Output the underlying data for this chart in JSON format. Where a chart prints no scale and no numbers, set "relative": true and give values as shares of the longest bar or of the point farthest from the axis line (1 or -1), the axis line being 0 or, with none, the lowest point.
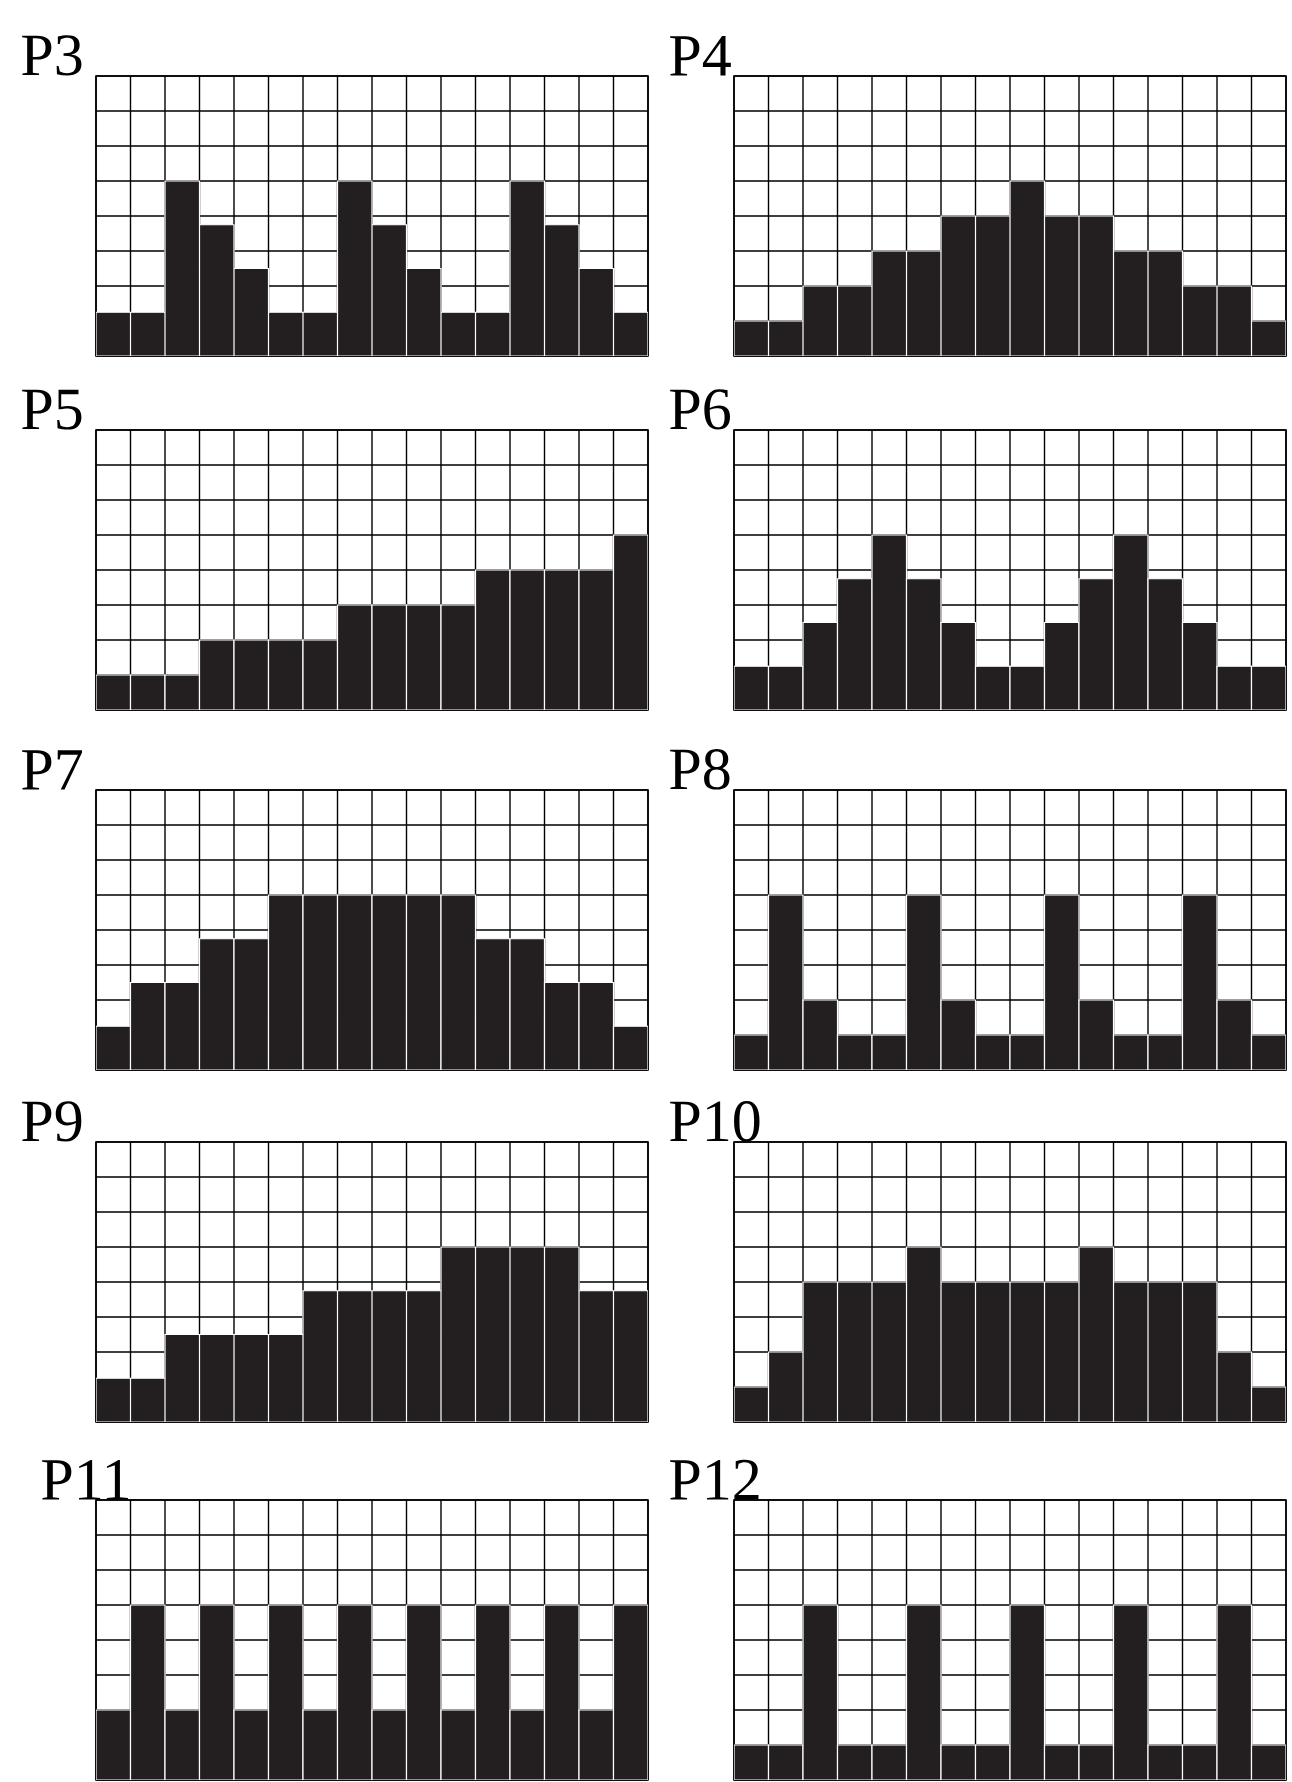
{
  "chart_data": [
    {
      "type": "bar",
      "title": "P3",
      "relative": true,
      "grid": true,
      "color": "#231f20",
      "categories": [
        null,
        null,
        null,
        null,
        null,
        null,
        null,
        null,
        null,
        null,
        null,
        null,
        null,
        null,
        null,
        null
      ],
      "values": [
        0.25,
        0.25,
        1,
        0.75,
        0.5,
        0.25,
        0.25,
        1,
        0.75,
        0.5,
        0.25,
        0.25,
        1,
        0.75,
        0.5,
        0.25
      ]
    },
    {
      "type": "bar",
      "title": "P4",
      "relative": true,
      "grid": true,
      "color": "#231f20",
      "categories": [
        null,
        null,
        null,
        null,
        null,
        null,
        null,
        null,
        null,
        null,
        null,
        null,
        null,
        null,
        null,
        null
      ],
      "values": [
        0.2,
        0.2,
        0.4,
        0.4,
        0.6,
        0.6,
        0.8,
        0.8,
        1,
        0.8,
        0.8,
        0.6,
        0.6,
        0.4,
        0.4,
        0.2
      ]
    },
    {
      "type": "bar",
      "title": "P5",
      "relative": true,
      "grid": true,
      "color": "#231f20",
      "categories": [
        null,
        null,
        null,
        null,
        null,
        null,
        null,
        null,
        null,
        null,
        null,
        null,
        null,
        null,
        null,
        null
      ],
      "values": [
        0.2,
        0.2,
        0.2,
        0.4,
        0.4,
        0.4,
        0.4,
        0.6,
        0.6,
        0.6,
        0.6,
        0.8,
        0.8,
        0.8,
        0.8,
        1
      ]
    },
    {
      "type": "bar",
      "title": "P6",
      "relative": true,
      "grid": true,
      "color": "#231f20",
      "categories": [
        null,
        null,
        null,
        null,
        null,
        null,
        null,
        null,
        null,
        null,
        null,
        null,
        null,
        null,
        null,
        null
      ],
      "values": [
        0.25,
        0.25,
        0.5,
        0.75,
        1,
        0.75,
        0.5,
        0.25,
        0.25,
        0.5,
        0.75,
        1,
        0.75,
        0.5,
        0.25,
        0.25
      ]
    },
    {
      "type": "bar",
      "title": "P7",
      "relative": true,
      "grid": true,
      "color": "#231f20",
      "categories": [
        null,
        null,
        null,
        null,
        null,
        null,
        null,
        null,
        null,
        null,
        null,
        null,
        null,
        null,
        null,
        null
      ],
      "values": [
        0.25,
        0.5,
        0.5,
        0.75,
        0.75,
        1,
        1,
        1,
        1,
        1,
        1,
        0.75,
        0.75,
        0.5,
        0.5,
        0.25
      ]
    },
    {
      "type": "bar",
      "title": "P8",
      "relative": true,
      "grid": true,
      "color": "#231f20",
      "categories": [
        null,
        null,
        null,
        null,
        null,
        null,
        null,
        null,
        null,
        null,
        null,
        null,
        null,
        null,
        null,
        null
      ],
      "values": [
        0.2,
        1,
        0.4,
        0.2,
        0.2,
        1,
        0.4,
        0.2,
        0.2,
        1,
        0.4,
        0.2,
        0.2,
        1,
        0.4,
        0.2
      ]
    },
    {
      "type": "bar",
      "title": "P9",
      "relative": true,
      "grid": true,
      "color": "#231f20",
      "categories": [
        null,
        null,
        null,
        null,
        null,
        null,
        null,
        null,
        null,
        null,
        null,
        null,
        null,
        null,
        null,
        null
      ],
      "values": [
        0.25,
        0.25,
        0.5,
        0.5,
        0.5,
        0.5,
        0.75,
        0.75,
        0.75,
        0.75,
        1,
        1,
        1,
        1,
        0.75,
        0.75
      ]
    },
    {
      "type": "bar",
      "title": "P10",
      "relative": true,
      "grid": true,
      "color": "#231f20",
      "categories": [
        null,
        null,
        null,
        null,
        null,
        null,
        null,
        null,
        null,
        null,
        null,
        null,
        null,
        null,
        null,
        null
      ],
      "values": [
        0.2,
        0.4,
        0.8,
        0.8,
        0.8,
        1,
        0.8,
        0.8,
        0.8,
        0.8,
        1,
        0.8,
        0.8,
        0.8,
        0.4,
        0.2
      ]
    },
    {
      "type": "bar",
      "title": "P11",
      "relative": true,
      "grid": true,
      "color": "#231f20",
      "categories": [
        null,
        null,
        null,
        null,
        null,
        null,
        null,
        null,
        null,
        null,
        null,
        null,
        null,
        null,
        null,
        null
      ],
      "values": [
        0.4,
        1,
        0.4,
        1,
        0.4,
        1,
        0.4,
        1,
        0.4,
        1,
        0.4,
        1,
        0.4,
        1,
        0.4,
        1
      ]
    },
    {
      "type": "bar",
      "title": "P12",
      "relative": true,
      "grid": true,
      "color": "#231f20",
      "categories": [
        null,
        null,
        null,
        null,
        null,
        null,
        null,
        null,
        null,
        null,
        null,
        null,
        null,
        null,
        null,
        null
      ],
      "values": [
        0.2,
        0.2,
        1,
        0.2,
        0.2,
        1,
        0.2,
        0.2,
        1,
        0.2,
        0.2,
        1,
        0.2,
        0.2,
        1,
        0.2
      ]
    }
  ]
}
